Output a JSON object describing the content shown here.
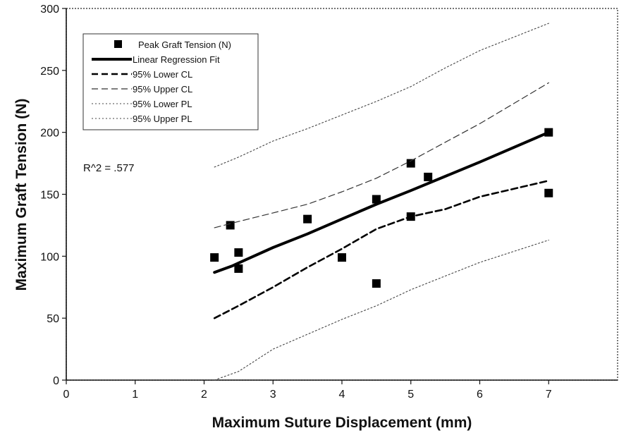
{
  "chart_data": {
    "type": "scatter",
    "xlabel": "Maximum Suture Displacement (mm)",
    "ylabel": "Maximum Graft Tension (N)",
    "xlim": [
      0,
      8
    ],
    "ylim": [
      0,
      300
    ],
    "x_ticks": [
      "0",
      "1",
      "2",
      "3",
      "4",
      "5",
      "6",
      "7"
    ],
    "y_ticks": [
      "0",
      "50",
      "100",
      "150",
      "200",
      "250",
      "300"
    ],
    "grid": false,
    "legend_position": "top-left",
    "annotation": "R^2 = .577",
    "series": [
      {
        "name": "Peak Graft Tension (N)",
        "kind": "scatter-square",
        "points": [
          [
            2.15,
            99
          ],
          [
            2.38,
            125
          ],
          [
            2.5,
            103
          ],
          [
            2.5,
            90
          ],
          [
            3.5,
            130
          ],
          [
            4.0,
            99
          ],
          [
            4.5,
            146
          ],
          [
            4.5,
            78
          ],
          [
            5.0,
            175
          ],
          [
            5.0,
            132
          ],
          [
            5.25,
            164
          ],
          [
            7.0,
            200
          ],
          [
            7.0,
            151
          ]
        ]
      },
      {
        "name": "Linear Regression Fit",
        "kind": "line-thick",
        "points": [
          [
            2.15,
            87
          ],
          [
            2.4,
            92
          ],
          [
            2.6,
            97
          ],
          [
            3.0,
            107
          ],
          [
            3.5,
            118
          ],
          [
            4.0,
            130
          ],
          [
            4.5,
            142
          ],
          [
            5.0,
            153
          ],
          [
            6.0,
            176
          ],
          [
            7.0,
            200
          ]
        ]
      },
      {
        "name": "95% Lower CL",
        "kind": "dashed-thick",
        "points": [
          [
            2.15,
            50
          ],
          [
            2.5,
            60
          ],
          [
            3.0,
            75
          ],
          [
            3.5,
            91
          ],
          [
            4.0,
            106
          ],
          [
            4.5,
            122
          ],
          [
            5.0,
            132
          ],
          [
            5.5,
            138
          ],
          [
            6.0,
            148
          ],
          [
            7.0,
            161
          ]
        ]
      },
      {
        "name": "95% Upper CL",
        "kind": "dashed-thin",
        "points": [
          [
            2.15,
            123
          ],
          [
            2.5,
            128
          ],
          [
            3.0,
            135
          ],
          [
            3.5,
            142
          ],
          [
            4.0,
            152
          ],
          [
            4.5,
            163
          ],
          [
            5.0,
            177
          ],
          [
            5.5,
            192
          ],
          [
            6.0,
            207
          ],
          [
            7.0,
            240
          ]
        ]
      },
      {
        "name": "95% Lower PL",
        "kind": "dotted",
        "points": [
          [
            2.15,
            0
          ],
          [
            2.5,
            7
          ],
          [
            3.0,
            25
          ],
          [
            3.5,
            37
          ],
          [
            4.0,
            49
          ],
          [
            4.5,
            60
          ],
          [
            5.0,
            73
          ],
          [
            5.5,
            84
          ],
          [
            6.0,
            95
          ],
          [
            7.0,
            113
          ]
        ]
      },
      {
        "name": "95% Upper PL",
        "kind": "dotted",
        "points": [
          [
            2.15,
            172
          ],
          [
            2.5,
            180
          ],
          [
            3.0,
            193
          ],
          [
            3.5,
            203
          ],
          [
            4.0,
            214
          ],
          [
            4.5,
            225
          ],
          [
            5.0,
            237
          ],
          [
            5.5,
            252
          ],
          [
            6.0,
            266
          ],
          [
            7.0,
            288
          ]
        ]
      }
    ]
  }
}
